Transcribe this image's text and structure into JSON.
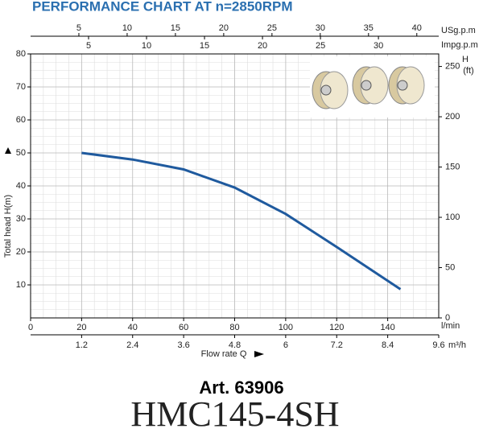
{
  "chart_data": {
    "type": "line",
    "title": "PERFORMANCE CHART AT n=2850RPM",
    "x": [
      20,
      40,
      60,
      80,
      100,
      120,
      145
    ],
    "series": [
      {
        "name": "HMC145-4SH",
        "color": "#1f5a9e",
        "values": [
          50,
          48,
          45,
          39.5,
          31.5,
          21.5,
          8.7
        ]
      }
    ],
    "xlim": [
      0,
      160
    ],
    "xticks": [
      0,
      20,
      40,
      60,
      80,
      100,
      120,
      140
    ],
    "x_unit": "l/min",
    "ylim": [
      0,
      80
    ],
    "yticks": [
      10,
      20,
      30,
      40,
      50,
      60,
      70,
      80
    ],
    "ylabel": "Total  head H(m)",
    "y2label": "H",
    "y2unit": "(ft)",
    "y2lim": [
      0,
      262.47
    ],
    "y2ticks": [
      0,
      50,
      100,
      150,
      200,
      250
    ],
    "m3h_axis": {
      "label": "Flow rate Q",
      "unit": "m³/h",
      "lim": [
        0,
        9.6
      ],
      "ticks": [
        1.2,
        2.4,
        3.6,
        4.8,
        6.0,
        7.2,
        8.4,
        9.6
      ]
    },
    "usgpm_axis": {
      "unit": "USg.p.m",
      "lim": [
        0,
        42.27
      ],
      "ticks": [
        5,
        10,
        15,
        20,
        25,
        30,
        35,
        40
      ]
    },
    "impgpm_axis": {
      "unit": "Impg.p.m",
      "lim": [
        0,
        35.2
      ],
      "ticks": [
        5,
        10,
        15,
        20,
        25,
        30
      ]
    },
    "grid": true,
    "article": "Art. 63906",
    "model": "HMC145-4SH"
  }
}
